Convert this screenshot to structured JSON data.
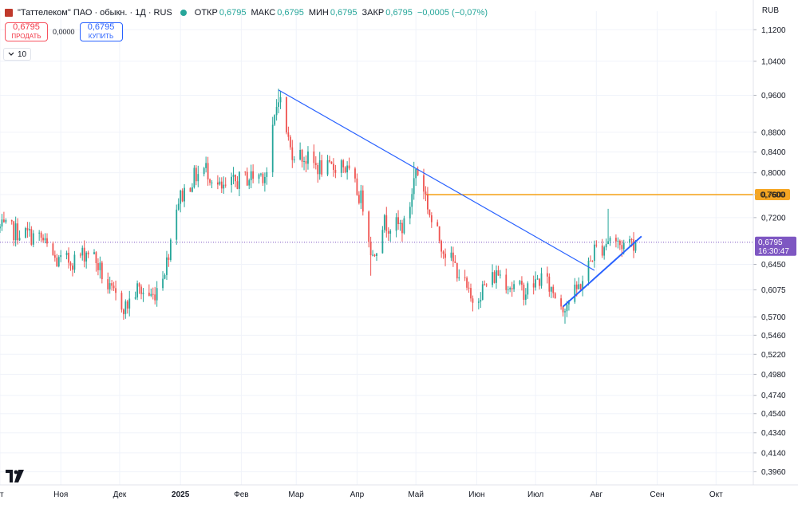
{
  "header": {
    "symbol": "\"Таттелеком\" ПАО · обыкн. · 1Д · RUS",
    "ohlc": [
      {
        "key": "ОТКР",
        "value": "0,6795"
      },
      {
        "key": "МАКС",
        "value": "0,6795"
      },
      {
        "key": "МИН",
        "value": "0,6795"
      },
      {
        "key": "ЗАКР",
        "value": "0,6795"
      }
    ],
    "change": "−0,0005 (−0,07%)",
    "currency": "RUB"
  },
  "trade": {
    "sell_price": "0,6795",
    "sell_label": "ПРОДАТЬ",
    "spread": "0,0000",
    "buy_price": "0,6795",
    "buy_label": "КУПИТЬ"
  },
  "indicators": {
    "count": "10"
  },
  "colors": {
    "up": "#26a69a",
    "down": "#ef5350",
    "trendline": "#2962ff",
    "level": "#f5a623",
    "price_tag": "#7e57c2",
    "price_line": "#7e57c2",
    "grid": "#f0f3fa"
  },
  "chart_data": {
    "type": "candlestick",
    "y_scale": "log",
    "ylim": [
      0.384,
      1.17
    ],
    "y_ticks": [
      "1,1200",
      "1,0400",
      "0,9600",
      "0,8800",
      "0,8400",
      "0,8000",
      "0,7600",
      "0,7200",
      "0,6795",
      "0,6450",
      "0,6075",
      "0,5700",
      "0,5460",
      "0,5220",
      "0,4980",
      "0,4740",
      "0,4540",
      "0,4340",
      "0,4140",
      "0,3960"
    ],
    "y_tick_values": [
      1.12,
      1.04,
      0.96,
      0.88,
      0.84,
      0.8,
      0.76,
      0.72,
      0.6795,
      0.645,
      0.6075,
      0.57,
      0.546,
      0.522,
      0.498,
      0.474,
      0.454,
      0.434,
      0.414,
      0.396
    ],
    "x_labels": [
      {
        "label": "кт",
        "date": "2024-10-01"
      },
      {
        "label": "Ноя",
        "date": "2024-11-01"
      },
      {
        "label": "Дек",
        "date": "2024-12-01"
      },
      {
        "label": "2025",
        "date": "2025-01-01"
      },
      {
        "label": "Фев",
        "date": "2025-02-01"
      },
      {
        "label": "Мар",
        "date": "2025-03-01"
      },
      {
        "label": "Апр",
        "date": "2025-04-01"
      },
      {
        "label": "Май",
        "date": "2025-05-01"
      },
      {
        "label": "Июн",
        "date": "2025-06-01"
      },
      {
        "label": "Июл",
        "date": "2025-07-01"
      },
      {
        "label": "Авг",
        "date": "2025-08-01"
      },
      {
        "label": "Сен",
        "date": "2025-09-01"
      },
      {
        "label": "Окт",
        "date": "2025-10-01"
      }
    ],
    "xlim": [
      "2024-10-01",
      "2025-10-20"
    ],
    "last_price": {
      "value": 0.6795,
      "label": "0,6795",
      "countdown": "16:30:47"
    },
    "level": {
      "value": 0.76,
      "label": "0,7600",
      "from": "2025-05-06"
    },
    "trendlines": [
      {
        "name": "descending",
        "from": {
          "date": "2025-02-20",
          "value": 0.972
        },
        "to": {
          "date": "2025-07-31",
          "value": 0.636
        }
      },
      {
        "name": "ascending",
        "from": {
          "date": "2025-07-15",
          "value": 0.584
        },
        "to": {
          "date": "2025-08-24",
          "value": 0.689
        }
      }
    ],
    "anchors": [
      {
        "date": "2024-10-01",
        "close": 0.702
      },
      {
        "date": "2024-10-12",
        "close": 0.695
      },
      {
        "date": "2024-10-22",
        "close": 0.685
      },
      {
        "date": "2024-10-30",
        "close": 0.648
      },
      {
        "date": "2024-11-08",
        "close": 0.652
      },
      {
        "date": "2024-11-16",
        "close": 0.669
      },
      {
        "date": "2024-11-26",
        "close": 0.605
      },
      {
        "date": "2024-12-04",
        "close": 0.583
      },
      {
        "date": "2024-12-10",
        "close": 0.608
      },
      {
        "date": "2024-12-18",
        "close": 0.598
      },
      {
        "date": "2024-12-25",
        "close": 0.648
      },
      {
        "date": "2024-12-30",
        "close": 0.745
      },
      {
        "date": "2025-01-08",
        "close": 0.792
      },
      {
        "date": "2025-01-14",
        "close": 0.808
      },
      {
        "date": "2025-01-22",
        "close": 0.766
      },
      {
        "date": "2025-01-30",
        "close": 0.785
      },
      {
        "date": "2025-02-08",
        "close": 0.795
      },
      {
        "date": "2025-02-14",
        "close": 0.8
      },
      {
        "date": "2025-02-20",
        "close": 0.965
      },
      {
        "date": "2025-02-26",
        "close": 0.845
      },
      {
        "date": "2025-03-04",
        "close": 0.832
      },
      {
        "date": "2025-03-11",
        "close": 0.813
      },
      {
        "date": "2025-03-18",
        "close": 0.805
      },
      {
        "date": "2025-03-24",
        "close": 0.822
      },
      {
        "date": "2025-03-29",
        "close": 0.788
      },
      {
        "date": "2025-04-04",
        "close": 0.745
      },
      {
        "date": "2025-04-09",
        "close": 0.655
      },
      {
        "date": "2025-04-14",
        "close": 0.712
      },
      {
        "date": "2025-04-20",
        "close": 0.706
      },
      {
        "date": "2025-04-26",
        "close": 0.705
      },
      {
        "date": "2025-05-01",
        "close": 0.808
      },
      {
        "date": "2025-05-05",
        "close": 0.773
      },
      {
        "date": "2025-05-09",
        "close": 0.712
      },
      {
        "date": "2025-05-16",
        "close": 0.665
      },
      {
        "date": "2025-05-24",
        "close": 0.628
      },
      {
        "date": "2025-05-29",
        "close": 0.592
      },
      {
        "date": "2025-06-06",
        "close": 0.615
      },
      {
        "date": "2025-06-12",
        "close": 0.633
      },
      {
        "date": "2025-06-19",
        "close": 0.612
      },
      {
        "date": "2025-06-26",
        "close": 0.606
      },
      {
        "date": "2025-07-04",
        "close": 0.625
      },
      {
        "date": "2025-07-10",
        "close": 0.605
      },
      {
        "date": "2025-07-15",
        "close": 0.585
      },
      {
        "date": "2025-07-20",
        "close": 0.598
      },
      {
        "date": "2025-07-26",
        "close": 0.626
      },
      {
        "date": "2025-07-31",
        "close": 0.668
      },
      {
        "date": "2025-08-04",
        "close": 0.672
      },
      {
        "date": "2025-08-08",
        "close": 0.688
      },
      {
        "date": "2025-08-13",
        "close": 0.675
      },
      {
        "date": "2025-08-18",
        "close": 0.681
      },
      {
        "date": "2025-08-21",
        "close": 0.6795
      }
    ],
    "extremes": [
      {
        "date": "2025-02-20",
        "high": 0.975
      },
      {
        "date": "2024-12-07",
        "low": 0.562
      },
      {
        "date": "2025-04-08",
        "low": 0.628
      },
      {
        "date": "2025-07-16",
        "low": 0.561
      },
      {
        "date": "2025-08-07",
        "high": 0.735
      },
      {
        "date": "2025-04-30",
        "high": 0.821
      }
    ]
  }
}
